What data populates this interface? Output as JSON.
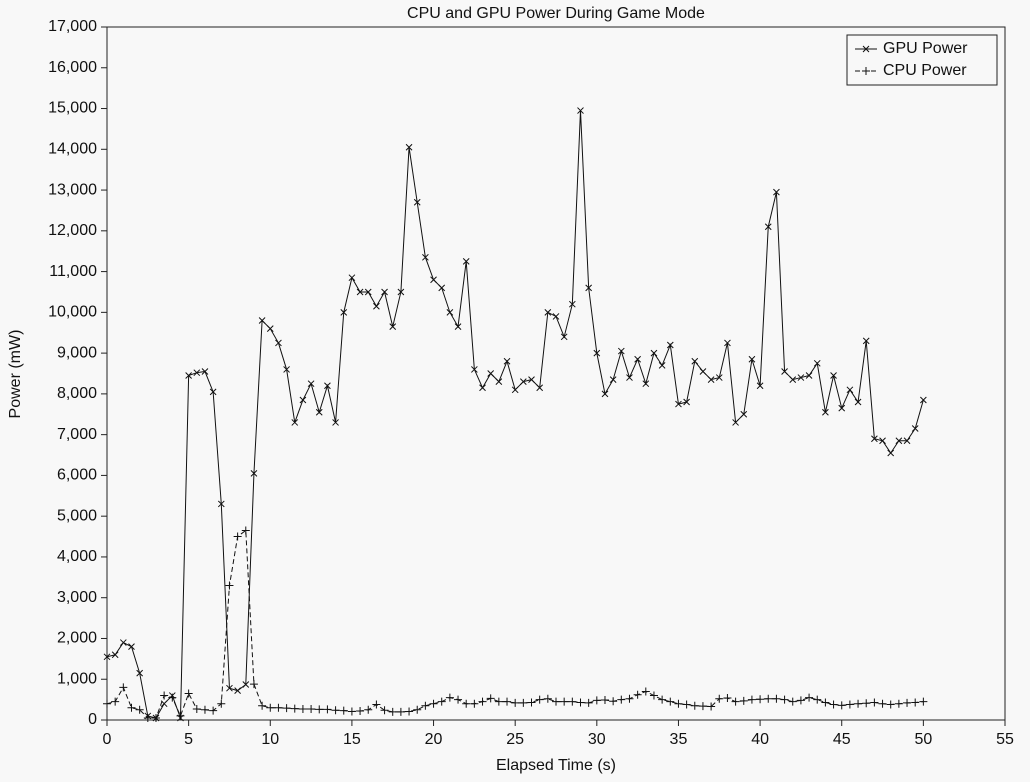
{
  "chart_data": {
    "type": "line",
    "title": "CPU and GPU Power During Game Mode",
    "x_label": "Elapsed Time (s)",
    "y_label": "Power (mW)",
    "x": [
      0,
      0.5,
      1,
      1.5,
      2,
      2.5,
      3,
      3.5,
      4,
      4.5,
      5,
      5.5,
      6,
      6.5,
      7,
      7.5,
      8,
      8.5,
      9,
      9.5,
      10,
      10.5,
      11,
      11.5,
      12,
      12.5,
      13,
      13.5,
      14,
      14.5,
      15,
      15.5,
      16,
      16.5,
      17,
      17.5,
      18,
      18.5,
      19,
      19.5,
      20,
      20.5,
      21,
      21.5,
      22,
      22.5,
      23,
      23.5,
      24,
      24.5,
      25,
      25.5,
      26,
      26.5,
      27,
      27.5,
      28,
      28.5,
      29,
      29.5,
      30,
      30.5,
      31,
      31.5,
      32,
      32.5,
      33,
      33.5,
      34,
      34.5,
      35,
      35.5,
      36,
      36.5,
      37,
      37.5,
      38,
      38.5,
      39,
      39.5,
      40,
      40.5,
      41,
      41.5,
      42,
      42.5,
      43,
      43.5,
      44,
      44.5,
      45,
      45.5,
      46,
      46.5,
      47,
      47.5,
      48,
      48.5,
      49,
      49.5,
      50
    ],
    "series": [
      {
        "name": "GPU Power",
        "color": "#111111",
        "marker": "x",
        "dash": false,
        "values": [
          1550,
          1600,
          1900,
          1800,
          1150,
          100,
          50,
          400,
          600,
          50,
          8450,
          8520,
          8550,
          8050,
          5300,
          780,
          720,
          870,
          6050,
          9800,
          9600,
          9250,
          8600,
          7300,
          7850,
          8250,
          7550,
          8200,
          7300,
          10000,
          10850,
          10500,
          10500,
          10150,
          10500,
          9650,
          10500,
          14050,
          12700,
          11350,
          10800,
          10600,
          10000,
          9650,
          11250,
          8600,
          8150,
          8500,
          8300,
          8800,
          8100,
          8300,
          8350,
          8150,
          10000,
          9900,
          9400,
          10200,
          14950,
          10600,
          9000,
          8000,
          8350,
          9050,
          8400,
          8850,
          8250,
          9000,
          8700,
          9200,
          7750,
          7800,
          8800,
          8550,
          8350,
          8400,
          9250,
          7300,
          7500,
          8850,
          8200,
          12100,
          12950,
          8550,
          8350,
          8400,
          8450,
          8750,
          7550,
          8450,
          7650,
          8100,
          7800,
          9300,
          6900,
          6850,
          6550,
          6850,
          6850,
          7150,
          7850
        ]
      },
      {
        "name": "CPU Power",
        "color": "#111111",
        "marker": "+",
        "dash": true,
        "values": [
          400,
          450,
          800,
          300,
          250,
          50,
          50,
          600,
          550,
          100,
          650,
          270,
          250,
          230,
          400,
          3300,
          4500,
          4650,
          880,
          350,
          300,
          300,
          290,
          280,
          270,
          270,
          260,
          260,
          240,
          230,
          210,
          220,
          250,
          380,
          240,
          200,
          200,
          210,
          250,
          350,
          400,
          450,
          550,
          500,
          400,
          400,
          450,
          530,
          450,
          450,
          420,
          420,
          430,
          500,
          520,
          450,
          450,
          450,
          430,
          420,
          480,
          490,
          460,
          500,
          520,
          620,
          700,
          600,
          500,
          450,
          400,
          380,
          350,
          340,
          330,
          520,
          540,
          450,
          470,
          500,
          510,
          520,
          520,
          500,
          450,
          480,
          550,
          500,
          430,
          380,
          360,
          380,
          400,
          410,
          430,
          400,
          380,
          400,
          420,
          430,
          450
        ]
      }
    ],
    "xlim": [
      0,
      55
    ],
    "xticks": [
      0,
      5,
      10,
      15,
      20,
      25,
      30,
      35,
      40,
      45,
      50,
      55
    ],
    "ylim": [
      0,
      17000
    ],
    "yticks": [
      0,
      {
        "value": 1000,
        "label": "1,000"
      },
      {
        "value": 2000,
        "label": "2,000"
      },
      {
        "value": 3000,
        "label": "3,000"
      },
      {
        "value": 4000,
        "label": "4,000"
      },
      {
        "value": 5000,
        "label": "5,000"
      },
      {
        "value": 6000,
        "label": "6,000"
      },
      {
        "value": 7000,
        "label": "7,000"
      },
      {
        "value": 8000,
        "label": "8,000"
      },
      {
        "value": 9000,
        "label": "9,000"
      },
      {
        "value": 10000,
        "label": "10,000"
      },
      {
        "value": 11000,
        "label": "11,000"
      },
      {
        "value": 12000,
        "label": "12,000"
      },
      {
        "value": 13000,
        "label": "13,000"
      },
      {
        "value": 14000,
        "label": "14,000"
      },
      {
        "value": 15000,
        "label": "15,000"
      },
      {
        "value": 16000,
        "label": "16,000"
      },
      {
        "value": 17000,
        "label": "17,000"
      }
    ],
    "grid": false,
    "legend": "upper right"
  }
}
